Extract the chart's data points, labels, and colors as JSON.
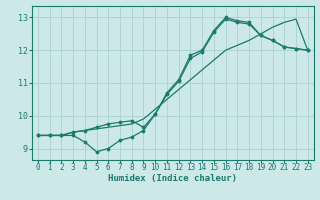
{
  "xlabel": "Humidex (Indice chaleur)",
  "bg_color": "#cce8e8",
  "grid_color": "#b0d4d4",
  "line_color": "#1a7a6e",
  "spine_color": "#1a7a6e",
  "xlim": [
    -0.5,
    23.5
  ],
  "ylim": [
    8.65,
    13.35
  ],
  "xticks": [
    0,
    1,
    2,
    3,
    4,
    5,
    6,
    7,
    8,
    9,
    10,
    11,
    12,
    13,
    14,
    15,
    16,
    17,
    18,
    19,
    20,
    21,
    22,
    23
  ],
  "yticks": [
    9,
    10,
    11,
    12,
    13
  ],
  "line1_x": [
    0,
    1,
    2,
    3,
    4,
    5,
    6,
    7,
    8,
    9,
    10,
    11,
    12,
    13,
    14,
    15,
    16,
    17,
    18,
    19,
    20,
    21,
    22,
    23
  ],
  "line1_y": [
    9.4,
    9.4,
    9.4,
    9.5,
    9.55,
    9.65,
    9.75,
    9.8,
    9.85,
    9.65,
    10.05,
    10.65,
    11.05,
    11.75,
    11.95,
    12.55,
    12.95,
    12.85,
    12.8,
    12.45,
    12.3,
    12.1,
    12.05,
    12.0
  ],
  "line2_x": [
    0,
    1,
    2,
    3,
    4,
    5,
    6,
    7,
    8,
    9,
    10,
    11,
    12,
    13,
    14,
    15,
    16,
    17,
    18,
    19,
    20,
    21,
    22,
    23
  ],
  "line2_y": [
    9.4,
    9.4,
    9.4,
    9.4,
    9.2,
    8.9,
    9.0,
    9.25,
    9.35,
    9.55,
    10.05,
    10.7,
    11.1,
    11.85,
    12.0,
    12.6,
    13.0,
    12.9,
    12.85,
    12.45,
    12.3,
    12.1,
    12.05,
    12.0
  ],
  "line3_x": [
    0,
    1,
    2,
    3,
    4,
    5,
    6,
    7,
    8,
    9,
    10,
    11,
    12,
    13,
    14,
    15,
    16,
    17,
    18,
    19,
    20,
    21,
    22,
    23
  ],
  "line3_y": [
    9.4,
    9.4,
    9.4,
    9.5,
    9.55,
    9.6,
    9.65,
    9.7,
    9.75,
    9.9,
    10.2,
    10.5,
    10.8,
    11.1,
    11.4,
    11.7,
    12.0,
    12.15,
    12.3,
    12.5,
    12.7,
    12.85,
    12.95,
    12.0
  ],
  "tick_fontsize": 5.5,
  "xlabel_fontsize": 6.5
}
